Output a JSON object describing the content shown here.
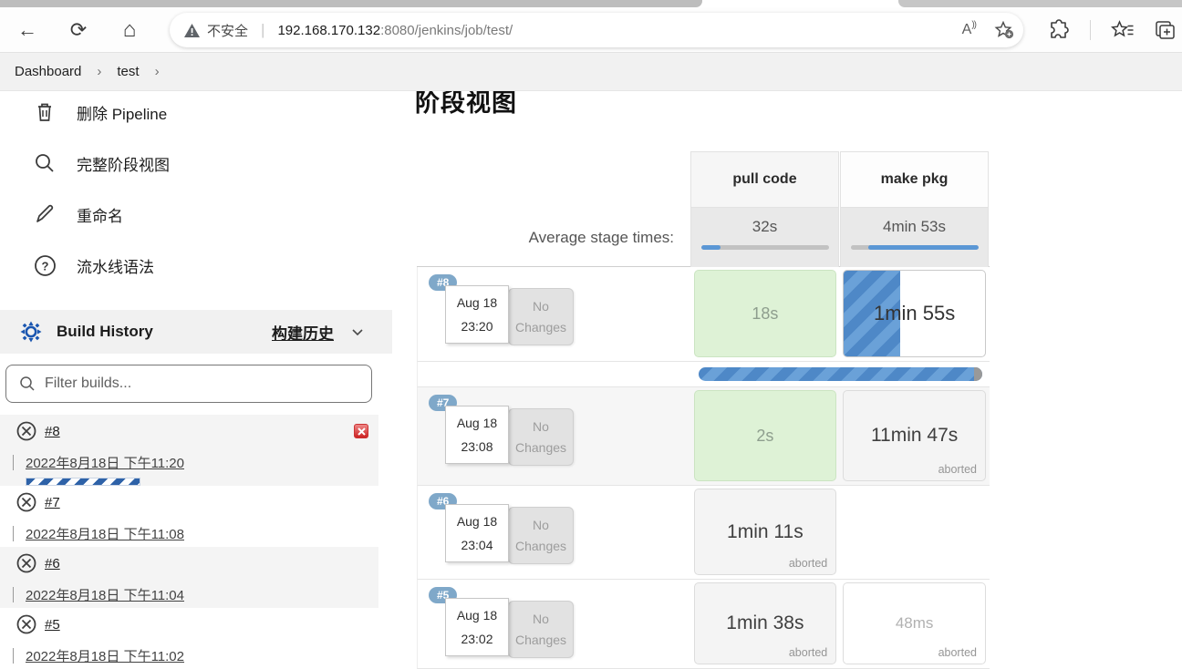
{
  "browser": {
    "security_label": "不安全",
    "url_host": "192.168.170.132",
    "url_path": ":8080/jenkins/job/test/",
    "read_aloud_glyph": "A",
    "read_aloud_arcs": "))"
  },
  "icons": {
    "back": "←",
    "refresh": "⟳",
    "home": "⌂",
    "breadcrumb_chevron": "›",
    "address_pipe": "|"
  },
  "breadcrumb": {
    "items": [
      {
        "label": "Dashboard"
      },
      {
        "label": "test"
      }
    ]
  },
  "sidebar": {
    "menu": [
      {
        "label": "删除 Pipeline"
      },
      {
        "label": "完整阶段视图"
      },
      {
        "label": "重命名"
      },
      {
        "label": "流水线语法"
      }
    ],
    "build_history": {
      "title_en": "Build History",
      "title_zh": "构建历史"
    },
    "filter_placeholder": "Filter builds...",
    "builds": [
      {
        "num": "#8",
        "date": "2022年8月18日 下午11:20",
        "in_progress": true,
        "cancellable": true
      },
      {
        "num": "#7",
        "date": "2022年8月18日 下午11:08",
        "in_progress": false,
        "cancellable": false
      },
      {
        "num": "#6",
        "date": "2022年8月18日 下午11:04",
        "in_progress": false,
        "cancellable": false
      },
      {
        "num": "#5",
        "date": "2022年8月18日 下午11:02",
        "in_progress": false,
        "cancellable": false
      }
    ]
  },
  "stage_view": {
    "title": "阶段视图",
    "avg_label": "Average stage times:",
    "columns": [
      {
        "name": "pull code",
        "avg_time": "32s",
        "avg_pct": 15
      },
      {
        "name": "make pkg",
        "avg_time": "4min 53s",
        "avg_pct": 86
      }
    ],
    "rows": [
      {
        "num": "#8",
        "date": "Aug 18",
        "time": "23:20",
        "changes": "No Changes",
        "pull": {
          "time": "18s",
          "status": ""
        },
        "make": {
          "time": "1min 55s",
          "status": "",
          "progress_pct": 40
        }
      },
      {
        "num": "#7",
        "date": "Aug 18",
        "time": "23:08",
        "changes": "No Changes",
        "pull": {
          "time": "2s",
          "status": ""
        },
        "make": {
          "time": "11min 47s",
          "status": "aborted"
        }
      },
      {
        "num": "#6",
        "date": "Aug 18",
        "time": "23:04",
        "changes": "No Changes",
        "pull": {
          "time": "1min 11s",
          "status": "aborted"
        },
        "make": null
      },
      {
        "num": "#5",
        "date": "Aug 18",
        "time": "23:02",
        "changes": "No Changes",
        "pull": {
          "time": "1min 38s",
          "status": "aborted"
        },
        "make": {
          "time": "48ms",
          "status": "aborted"
        }
      }
    ]
  },
  "colors": {
    "accent_blue": "#4e88c7",
    "stripe_light_blue": "#6aa1d8",
    "success_green_bg": "#def2d6",
    "aborted_gray_bg": "#f4f4f4",
    "badge_blue": "#7fa8c9",
    "history_stripe_blue": "#2e62a8",
    "cancel_red": "#c22222"
  }
}
